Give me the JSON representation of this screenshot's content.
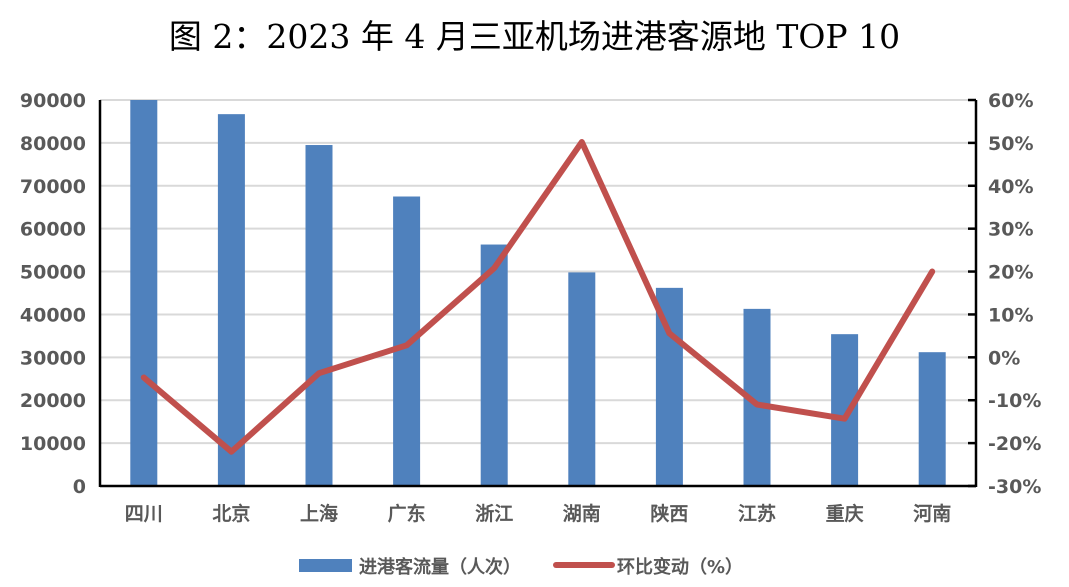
{
  "chart_data": {
    "type": "bar+line",
    "title": "图 2：2023 年 4 月三亚机场进港客源地 TOP 10",
    "categories": [
      "四川",
      "北京",
      "上海",
      "广东",
      "浙江",
      "湖南",
      "陕西",
      "江苏",
      "重庆",
      "河南"
    ],
    "series": [
      {
        "name": "进港客流量（人次）",
        "type": "bar",
        "axis": "left",
        "color": "#4F81BD",
        "values": [
          90000,
          86700,
          79500,
          67500,
          56300,
          49800,
          46200,
          41300,
          35400,
          31200
        ]
      },
      {
        "name": "环比变动（%）",
        "type": "line",
        "axis": "right",
        "color": "#C0504D",
        "values": [
          -4.7,
          -22.0,
          -3.7,
          2.8,
          20.8,
          50.2,
          5.6,
          -11.0,
          -14.3,
          20.0
        ]
      }
    ],
    "left_axis": {
      "ylim": [
        0,
        90000
      ],
      "ticks": [
        "0",
        "10000",
        "20000",
        "30000",
        "40000",
        "50000",
        "60000",
        "70000",
        "80000",
        "90000"
      ]
    },
    "right_axis": {
      "ylim": [
        -30,
        60
      ],
      "ticks": [
        "-30%",
        "-20%",
        "-10%",
        "0%",
        "10%",
        "20%",
        "30%",
        "40%",
        "50%",
        "60%"
      ]
    },
    "grid": true,
    "legend_position": "bottom",
    "xlabel": "",
    "ylabel": ""
  }
}
